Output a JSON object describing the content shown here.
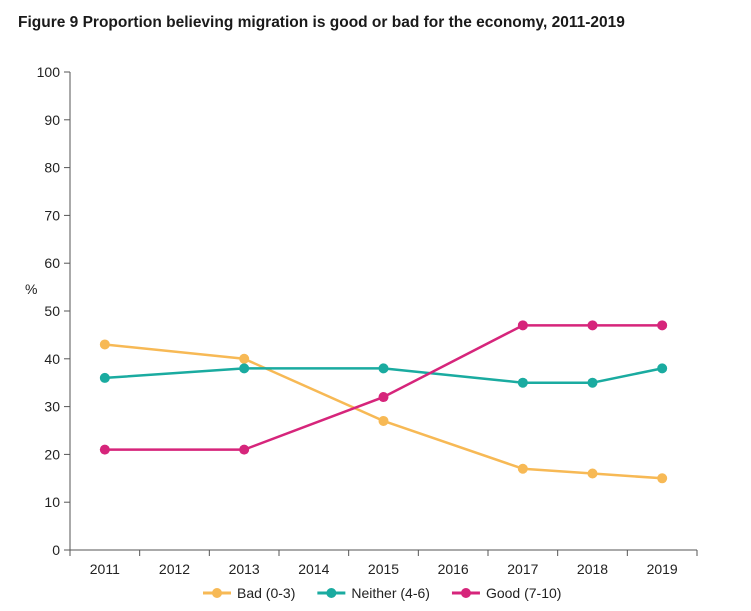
{
  "chart_data": {
    "type": "line",
    "title": "Figure 9 Proportion believing migration is good or bad for the economy, 2011-2019",
    "ylabel": "%",
    "xlabel": "",
    "x": [
      2011,
      2012,
      2013,
      2014,
      2015,
      2016,
      2017,
      2018,
      2019
    ],
    "ylim": [
      0,
      100
    ],
    "yticks": [
      0,
      10,
      20,
      30,
      40,
      50,
      60,
      70,
      80,
      90,
      100
    ],
    "grid": false,
    "legend_position": "bottom",
    "series": [
      {
        "name": "Bad (0-3)",
        "color": "#F7B955",
        "x": [
          2011,
          2013,
          2015,
          2017,
          2018,
          2019
        ],
        "values": [
          43,
          40,
          27,
          17,
          16,
          15
        ]
      },
      {
        "name": "Neither (4-6)",
        "color": "#1AABA0",
        "x": [
          2011,
          2013,
          2015,
          2017,
          2018,
          2019
        ],
        "values": [
          36,
          38,
          38,
          35,
          35,
          38
        ]
      },
      {
        "name": "Good (7-10)",
        "color": "#D6257B",
        "x": [
          2011,
          2013,
          2015,
          2017,
          2018,
          2019
        ],
        "values": [
          21,
          21,
          32,
          47,
          47,
          47
        ]
      }
    ]
  }
}
